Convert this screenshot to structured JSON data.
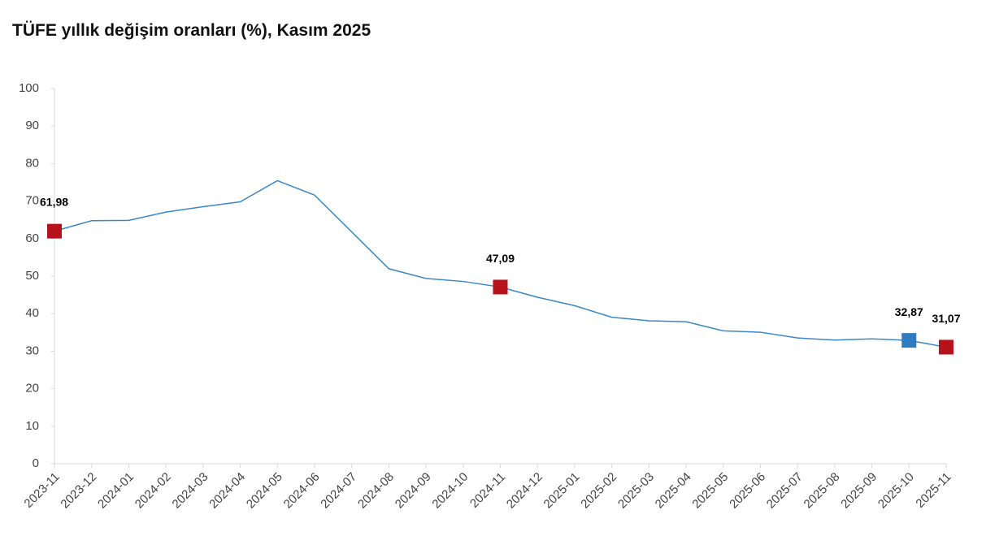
{
  "chart_data": {
    "type": "line",
    "title": "TÜFE yıllık değişim oranları (%), Kasım 2025",
    "categories": [
      "2023-11",
      "2023-12",
      "2024-01",
      "2024-02",
      "2024-03",
      "2024-04",
      "2024-05",
      "2024-06",
      "2024-07",
      "2024-08",
      "2024-09",
      "2024-10",
      "2024-11",
      "2024-12",
      "2025-01",
      "2025-02",
      "2025-03",
      "2025-04",
      "2025-05",
      "2025-06",
      "2025-07",
      "2025-08",
      "2025-09",
      "2025-10",
      "2025-11"
    ],
    "series": [
      {
        "color": "#3a87c8",
        "values": [
          61.98,
          64.77,
          64.86,
          67.07,
          68.5,
          69.8,
          75.45,
          71.6,
          61.78,
          51.97,
          49.38,
          48.58,
          47.09,
          44.38,
          42.12,
          39.05,
          38.1,
          37.86,
          35.41,
          35.05,
          33.52,
          32.95,
          33.29,
          32.87,
          31.07
        ],
        "value_labels": [
          "61,98",
          null,
          null,
          null,
          null,
          null,
          null,
          null,
          null,
          null,
          null,
          null,
          "47,09",
          null,
          null,
          null,
          null,
          null,
          null,
          null,
          null,
          null,
          null,
          "32,87",
          "31,07"
        ],
        "marker_colors": [
          "#b5121b",
          null,
          null,
          null,
          null,
          null,
          null,
          null,
          null,
          null,
          null,
          null,
          "#b5121b",
          null,
          null,
          null,
          null,
          null,
          null,
          null,
          null,
          null,
          null,
          "#2e7bbf",
          "#b5121b"
        ]
      }
    ],
    "ylim": [
      0,
      100
    ],
    "yticks": [
      0,
      10,
      20,
      30,
      40,
      50,
      60,
      70,
      80,
      90,
      100
    ],
    "grid": false
  }
}
